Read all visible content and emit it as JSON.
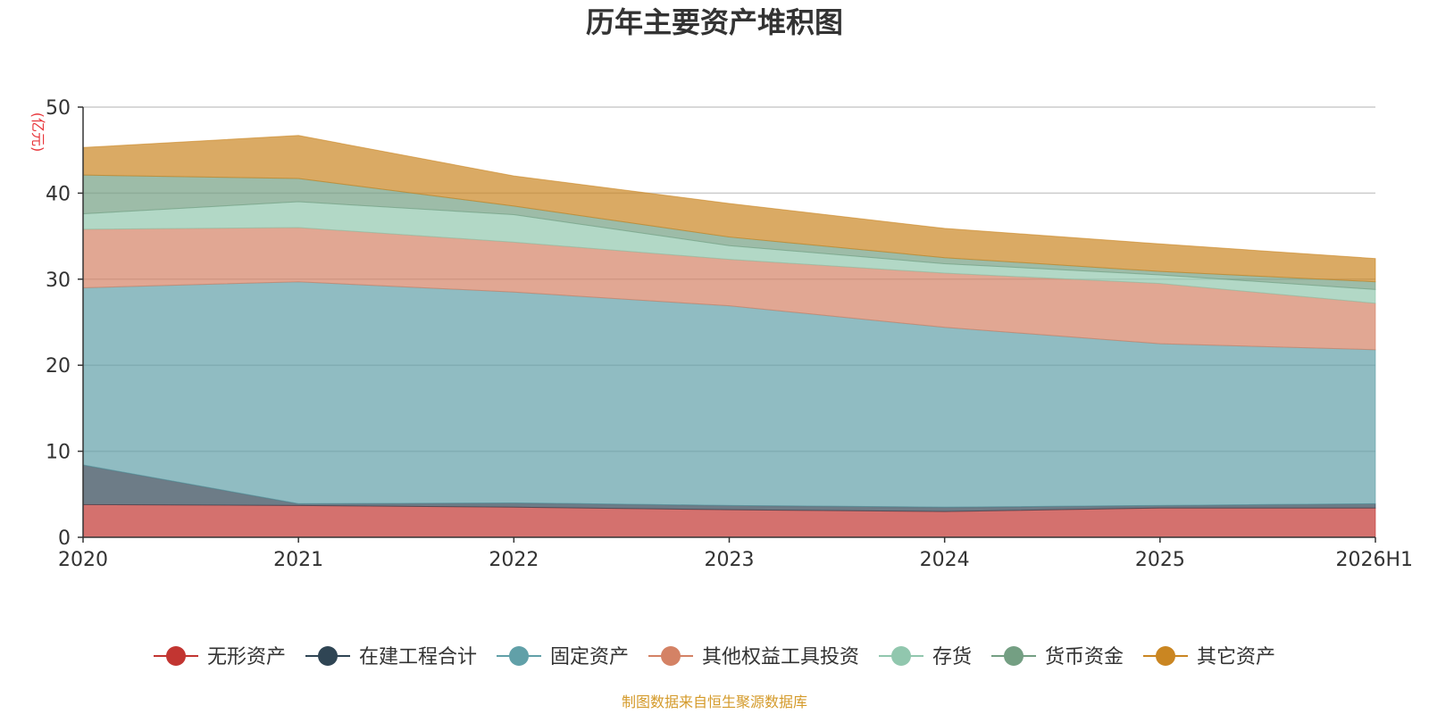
{
  "chart_data": {
    "type": "area",
    "stacked": true,
    "title": "历年主要资产堆积图",
    "unit_label": "(亿元)",
    "x": [
      "2020",
      "2021",
      "2022",
      "2023",
      "2024",
      "2025",
      "2026H1"
    ],
    "ylim": [
      0,
      50
    ],
    "yticks": [
      0,
      10,
      20,
      30,
      40,
      50
    ],
    "grid": true,
    "legend_position": "bottom",
    "series": [
      {
        "name": "无形资产",
        "color": "#c23531",
        "values": [
          3.8,
          3.7,
          3.5,
          3.2,
          3.0,
          3.4,
          3.4
        ]
      },
      {
        "name": "在建工程合计",
        "color": "#2f4554",
        "values": [
          4.6,
          0.2,
          0.5,
          0.5,
          0.5,
          0.3,
          0.5
        ]
      },
      {
        "name": "固定资产",
        "color": "#61a0a8",
        "values": [
          20.6,
          25.8,
          24.5,
          23.2,
          20.9,
          18.8,
          17.9
        ]
      },
      {
        "name": "其他权益工具投资",
        "color": "#d48265",
        "values": [
          6.8,
          6.3,
          5.8,
          5.4,
          6.3,
          7.0,
          5.4
        ]
      },
      {
        "name": "存货",
        "color": "#91c7ae",
        "values": [
          1.8,
          3.0,
          3.2,
          1.6,
          1.1,
          1.0,
          1.6
        ]
      },
      {
        "name": "货币资金",
        "color": "#749f83",
        "values": [
          4.5,
          2.7,
          1.0,
          1.0,
          0.7,
          0.4,
          0.9
        ]
      },
      {
        "name": "其它资产",
        "color": "#ca8622",
        "values": [
          3.2,
          5.0,
          3.5,
          3.9,
          3.4,
          3.2,
          2.7
        ]
      }
    ],
    "source_text": "制图数据来自恒生聚源数据库"
  },
  "colors": {
    "unit_label": "#e8363b",
    "source_text": "#d49a2a",
    "axis": "#333333",
    "grid": "#cccccc"
  }
}
